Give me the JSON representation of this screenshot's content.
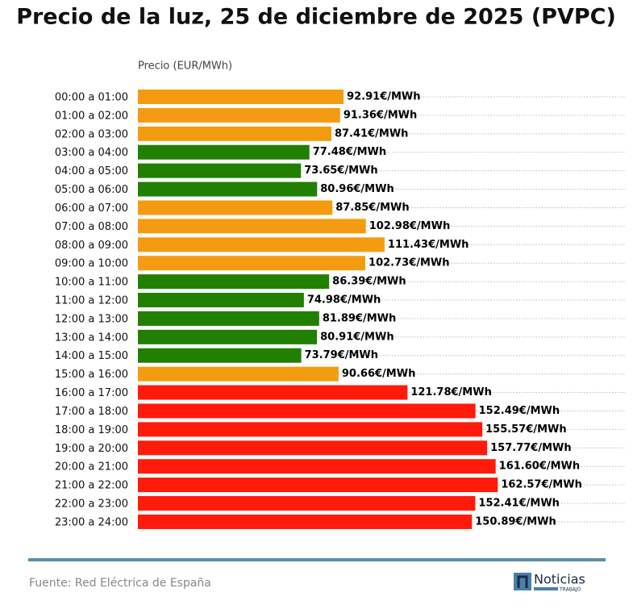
{
  "chart_data": {
    "type": "barh",
    "title": "Precio de la luz, 25 de diciembre de 2025 (PVPC)",
    "x_label": "Precio (EUR/MWh)",
    "categories": [
      "00:00 a 01:00",
      "01:00 a 02:00",
      "02:00 a 03:00",
      "03:00 a 04:00",
      "04:00 a 05:00",
      "05:00 a 06:00",
      "06:00 a 07:00",
      "07:00 a 08:00",
      "08:00 a 09:00",
      "09:00 a 10:00",
      "10:00 a 11:00",
      "11:00 a 12:00",
      "12:00 a 13:00",
      "13:00 a 14:00",
      "14:00 a 15:00",
      "15:00 a 16:00",
      "16:00 a 17:00",
      "17:00 a 18:00",
      "18:00 a 19:00",
      "19:00 a 20:00",
      "20:00 a 21:00",
      "21:00 a 22:00",
      "22:00 a 23:00",
      "23:00 a 24:00"
    ],
    "values": [
      92.91,
      91.36,
      87.41,
      77.48,
      73.65,
      80.96,
      87.85,
      102.98,
      111.43,
      102.73,
      86.39,
      74.98,
      81.89,
      80.91,
      73.79,
      90.66,
      121.78,
      152.49,
      155.57,
      157.77,
      161.6,
      162.57,
      152.41,
      150.89
    ],
    "value_labels": [
      "92.91€/MWh",
      "91.36€/MWh",
      "87.41€/MWh",
      "77.48€/MWh",
      "73.65€/MWh",
      "80.96€/MWh",
      "87.85€/MWh",
      "102.98€/MWh",
      "111.43€/MWh",
      "102.73€/MWh",
      "86.39€/MWh",
      "74.98€/MWh",
      "81.89€/MWh",
      "80.91€/MWh",
      "73.79€/MWh",
      "90.66€/MWh",
      "121.78€/MWh",
      "152.49€/MWh",
      "155.57€/MWh",
      "157.77€/MWh",
      "161.60€/MWh",
      "162.57€/MWh",
      "152.41€/MWh",
      "150.89€/MWh"
    ],
    "colors": [
      "#f39c12",
      "#f39c12",
      "#f39c12",
      "#218000",
      "#218000",
      "#218000",
      "#f39c12",
      "#f39c12",
      "#f39c12",
      "#f39c12",
      "#218000",
      "#218000",
      "#218000",
      "#218000",
      "#218000",
      "#f39c12",
      "#ff1a0a",
      "#ff1a0a",
      "#ff1a0a",
      "#ff1a0a",
      "#ff1a0a",
      "#ff1a0a",
      "#ff1a0a",
      "#ff1a0a"
    ],
    "xlim": [
      0,
      220
    ],
    "grid": true
  },
  "footer": {
    "source": "Fuente: Red Eléctrica de España",
    "logo": "Noticias",
    "logo_sub": "TRABAJO"
  }
}
